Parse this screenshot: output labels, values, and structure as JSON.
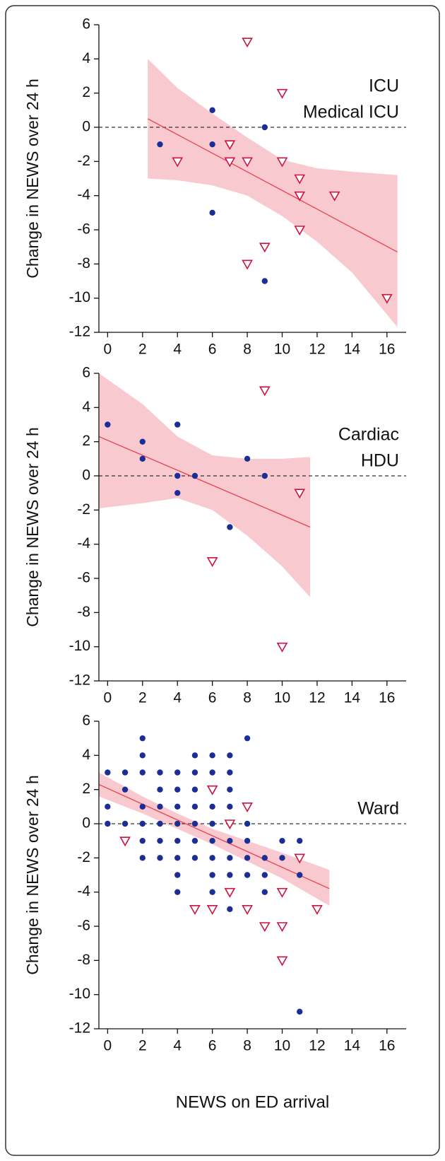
{
  "chart_data": [
    {
      "type": "scatter",
      "ylabel": "Change  in NEWS over 24 h",
      "annotation": [
        "ICU",
        "Medical ICU"
      ],
      "xlim": [
        -0.5,
        17.1
      ],
      "ylim": [
        -12,
        6
      ],
      "xticks": [
        0,
        2,
        4,
        6,
        8,
        10,
        12,
        14,
        16
      ],
      "yticks": [
        -12,
        -10,
        -8,
        -6,
        -4,
        -2,
        0,
        2,
        4,
        6
      ],
      "reference_line": 0,
      "series": [
        {
          "marker": "circle",
          "color": "#1b2e96",
          "x": [
            3,
            6,
            6,
            6,
            7,
            9,
            9
          ],
          "y": [
            -1,
            1,
            -1,
            -5,
            -1,
            0,
            -9
          ]
        },
        {
          "marker": "triangle",
          "color": "#cc1440",
          "x": [
            4,
            7,
            7,
            8,
            8,
            8,
            9,
            10,
            10,
            11,
            11,
            11,
            13,
            16
          ],
          "y": [
            -2,
            -1,
            -2,
            5,
            -2,
            -8,
            -7,
            2,
            -2,
            -3,
            -4,
            -6,
            -4,
            -10
          ]
        }
      ],
      "fit": {
        "color": "#e8404f",
        "x": [
          2.3,
          16.6
        ],
        "y": [
          0.5,
          -7.3
        ]
      },
      "band": {
        "color": "#f9c9d0",
        "x": [
          2.3,
          4,
          6,
          8,
          10,
          12,
          14,
          16.6
        ],
        "upper": [
          4.0,
          2.3,
          0.8,
          -0.6,
          -1.9,
          -2.4,
          -2.6,
          -2.8
        ],
        "lower": [
          -3.0,
          -3.1,
          -3.4,
          -4.0,
          -5.2,
          -6.7,
          -8.5,
          -11.7
        ]
      }
    },
    {
      "type": "scatter",
      "ylabel": "Change  in NEWS over 24 h",
      "annotation": [
        "Cardiac",
        "HDU"
      ],
      "xlim": [
        -0.5,
        17.1
      ],
      "ylim": [
        -12,
        6
      ],
      "xticks": [
        0,
        2,
        4,
        6,
        8,
        10,
        12,
        14,
        16
      ],
      "yticks": [
        -12,
        -10,
        -8,
        -6,
        -4,
        -2,
        0,
        2,
        4,
        6
      ],
      "reference_line": 0,
      "series": [
        {
          "marker": "circle",
          "color": "#1b2e96",
          "x": [
            0,
            2,
            2,
            4,
            4,
            4,
            5,
            7,
            8,
            9
          ],
          "y": [
            3,
            2,
            1,
            3,
            0,
            -1,
            0,
            -3,
            1,
            0
          ]
        },
        {
          "marker": "triangle",
          "color": "#cc1440",
          "x": [
            6,
            9,
            10,
            11
          ],
          "y": [
            -5,
            5,
            -10,
            -1
          ]
        }
      ],
      "fit": {
        "color": "#e8404f",
        "x": [
          -0.5,
          11.6
        ],
        "y": [
          2.3,
          -3.0
        ]
      },
      "band": {
        "color": "#f9c9d0",
        "x": [
          -0.5,
          2,
          4,
          6,
          8,
          10,
          11.6
        ],
        "upper": [
          6.0,
          4.2,
          2.3,
          1.2,
          1.0,
          1.0,
          1.1
        ],
        "lower": [
          -1.9,
          -1.6,
          -1.3,
          -2.0,
          -3.5,
          -5.3,
          -7.1
        ]
      }
    },
    {
      "type": "scatter",
      "ylabel": "Change  in NEWS over 24 h",
      "xlabel": "NEWS on ED arrival",
      "annotation": [
        "Ward"
      ],
      "xlim": [
        -0.5,
        17.1
      ],
      "ylim": [
        -12,
        6
      ],
      "xticks": [
        0,
        2,
        4,
        6,
        8,
        10,
        12,
        14,
        16
      ],
      "yticks": [
        -12,
        -10,
        -8,
        -6,
        -4,
        -2,
        0,
        2,
        4,
        6
      ],
      "reference_line": 0,
      "series": [
        {
          "marker": "circle",
          "color": "#1b2e96",
          "x": [
            0,
            0,
            0,
            1,
            1,
            1,
            1,
            2,
            2,
            2,
            2,
            2,
            2,
            2,
            3,
            3,
            3,
            3,
            3,
            3,
            4,
            4,
            4,
            4,
            4,
            4,
            4,
            4,
            5,
            5,
            5,
            5,
            5,
            5,
            5,
            6,
            6,
            6,
            6,
            6,
            6,
            6,
            6,
            6,
            7,
            7,
            7,
            7,
            7,
            7,
            7,
            7,
            7,
            7,
            8,
            8,
            8,
            8,
            8,
            9,
            9,
            9,
            10,
            10,
            11,
            11,
            11
          ],
          "y": [
            3,
            1,
            0,
            3,
            2,
            0,
            -1,
            5,
            4,
            3,
            1,
            0,
            -1,
            -2,
            3,
            2,
            1,
            0,
            -1,
            -2,
            3,
            2,
            1,
            0,
            -1,
            -2,
            -3,
            -4,
            4,
            3,
            2,
            1,
            0,
            -1,
            -2,
            4,
            3,
            2,
            1,
            0,
            -1,
            -2,
            -3,
            -4,
            4,
            3,
            2,
            1,
            0,
            -1,
            -2,
            -3,
            -4,
            -5,
            5,
            0,
            -1,
            -2,
            -3,
            -2,
            -3,
            -4,
            -1,
            -2,
            -1,
            -3,
            -11
          ]
        },
        {
          "marker": "triangle",
          "color": "#cc1440",
          "x": [
            1,
            5,
            6,
            6,
            7,
            7,
            8,
            8,
            9,
            10,
            10,
            10,
            11,
            12
          ],
          "y": [
            -1,
            -5,
            2,
            -5,
            0,
            -4,
            1,
            -5,
            -6,
            -4,
            -6,
            -8,
            -2,
            -5
          ]
        }
      ],
      "fit": {
        "color": "#e8404f",
        "x": [
          -0.5,
          12.7
        ],
        "y": [
          2.3,
          -3.8
        ]
      },
      "band": {
        "color": "#f9c9d0",
        "x": [
          -0.5,
          2,
          4,
          6,
          8,
          10,
          12.7
        ],
        "upper": [
          3.0,
          1.6,
          0.6,
          -0.3,
          -1.0,
          -1.7,
          -2.7
        ],
        "lower": [
          1.6,
          0.6,
          -0.3,
          -1.2,
          -2.2,
          -3.2,
          -4.8
        ]
      }
    }
  ]
}
